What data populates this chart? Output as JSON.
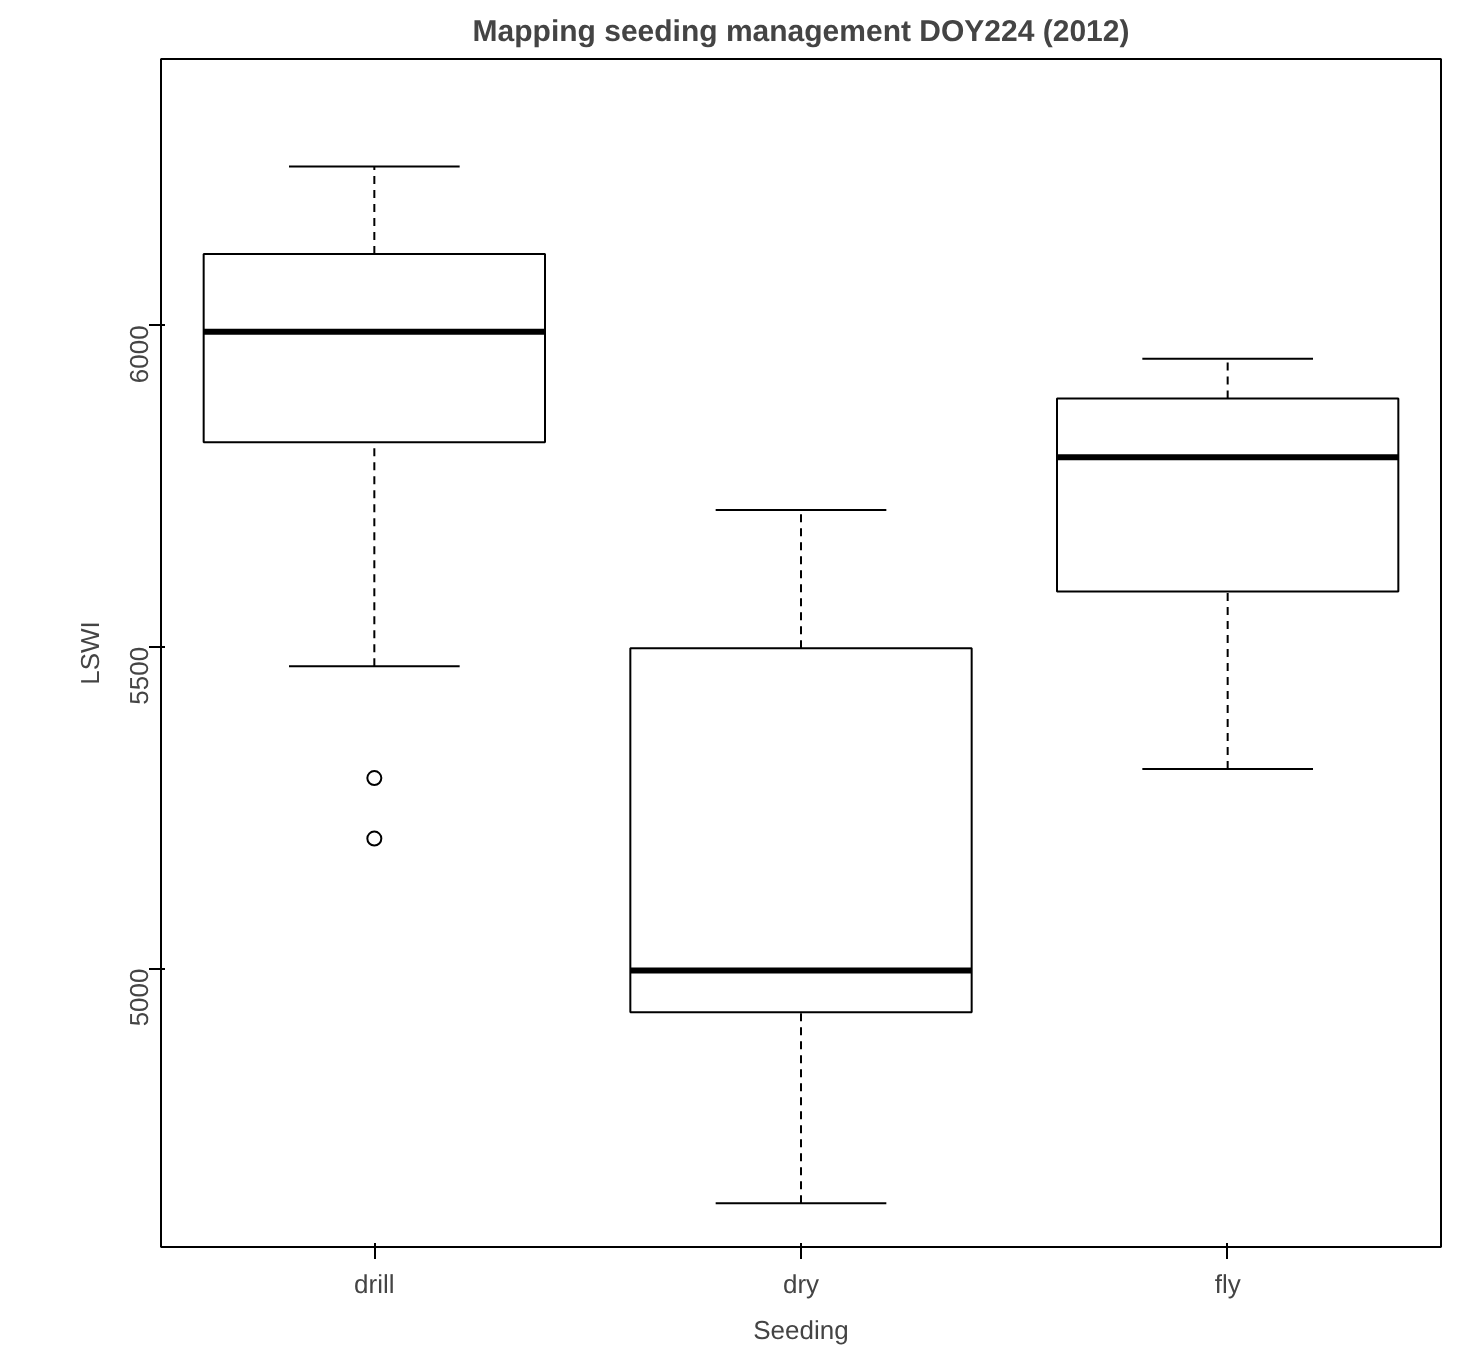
{
  "chart_data": {
    "type": "box",
    "title": "Mapping seeding management DOY224 (2012)",
    "xlabel": "Seeding",
    "ylabel": "LSWI",
    "categories": [
      "drill",
      "dry",
      "fly"
    ],
    "boxes": [
      {
        "low": 5470,
        "q1": 5818,
        "median": 5990,
        "q3": 6111,
        "high": 6247,
        "outliers": [
          5296,
          5202
        ]
      },
      {
        "low": 4635,
        "q1": 4932,
        "median": 4997,
        "q3": 5498,
        "high": 5713
      },
      {
        "low": 5310,
        "q1": 5586,
        "median": 5795,
        "q3": 5886,
        "high": 5948
      }
    ],
    "ylim": [
      4567,
      6414
    ],
    "yticks": [
      5000,
      5500,
      6000
    ],
    "grid": false
  }
}
